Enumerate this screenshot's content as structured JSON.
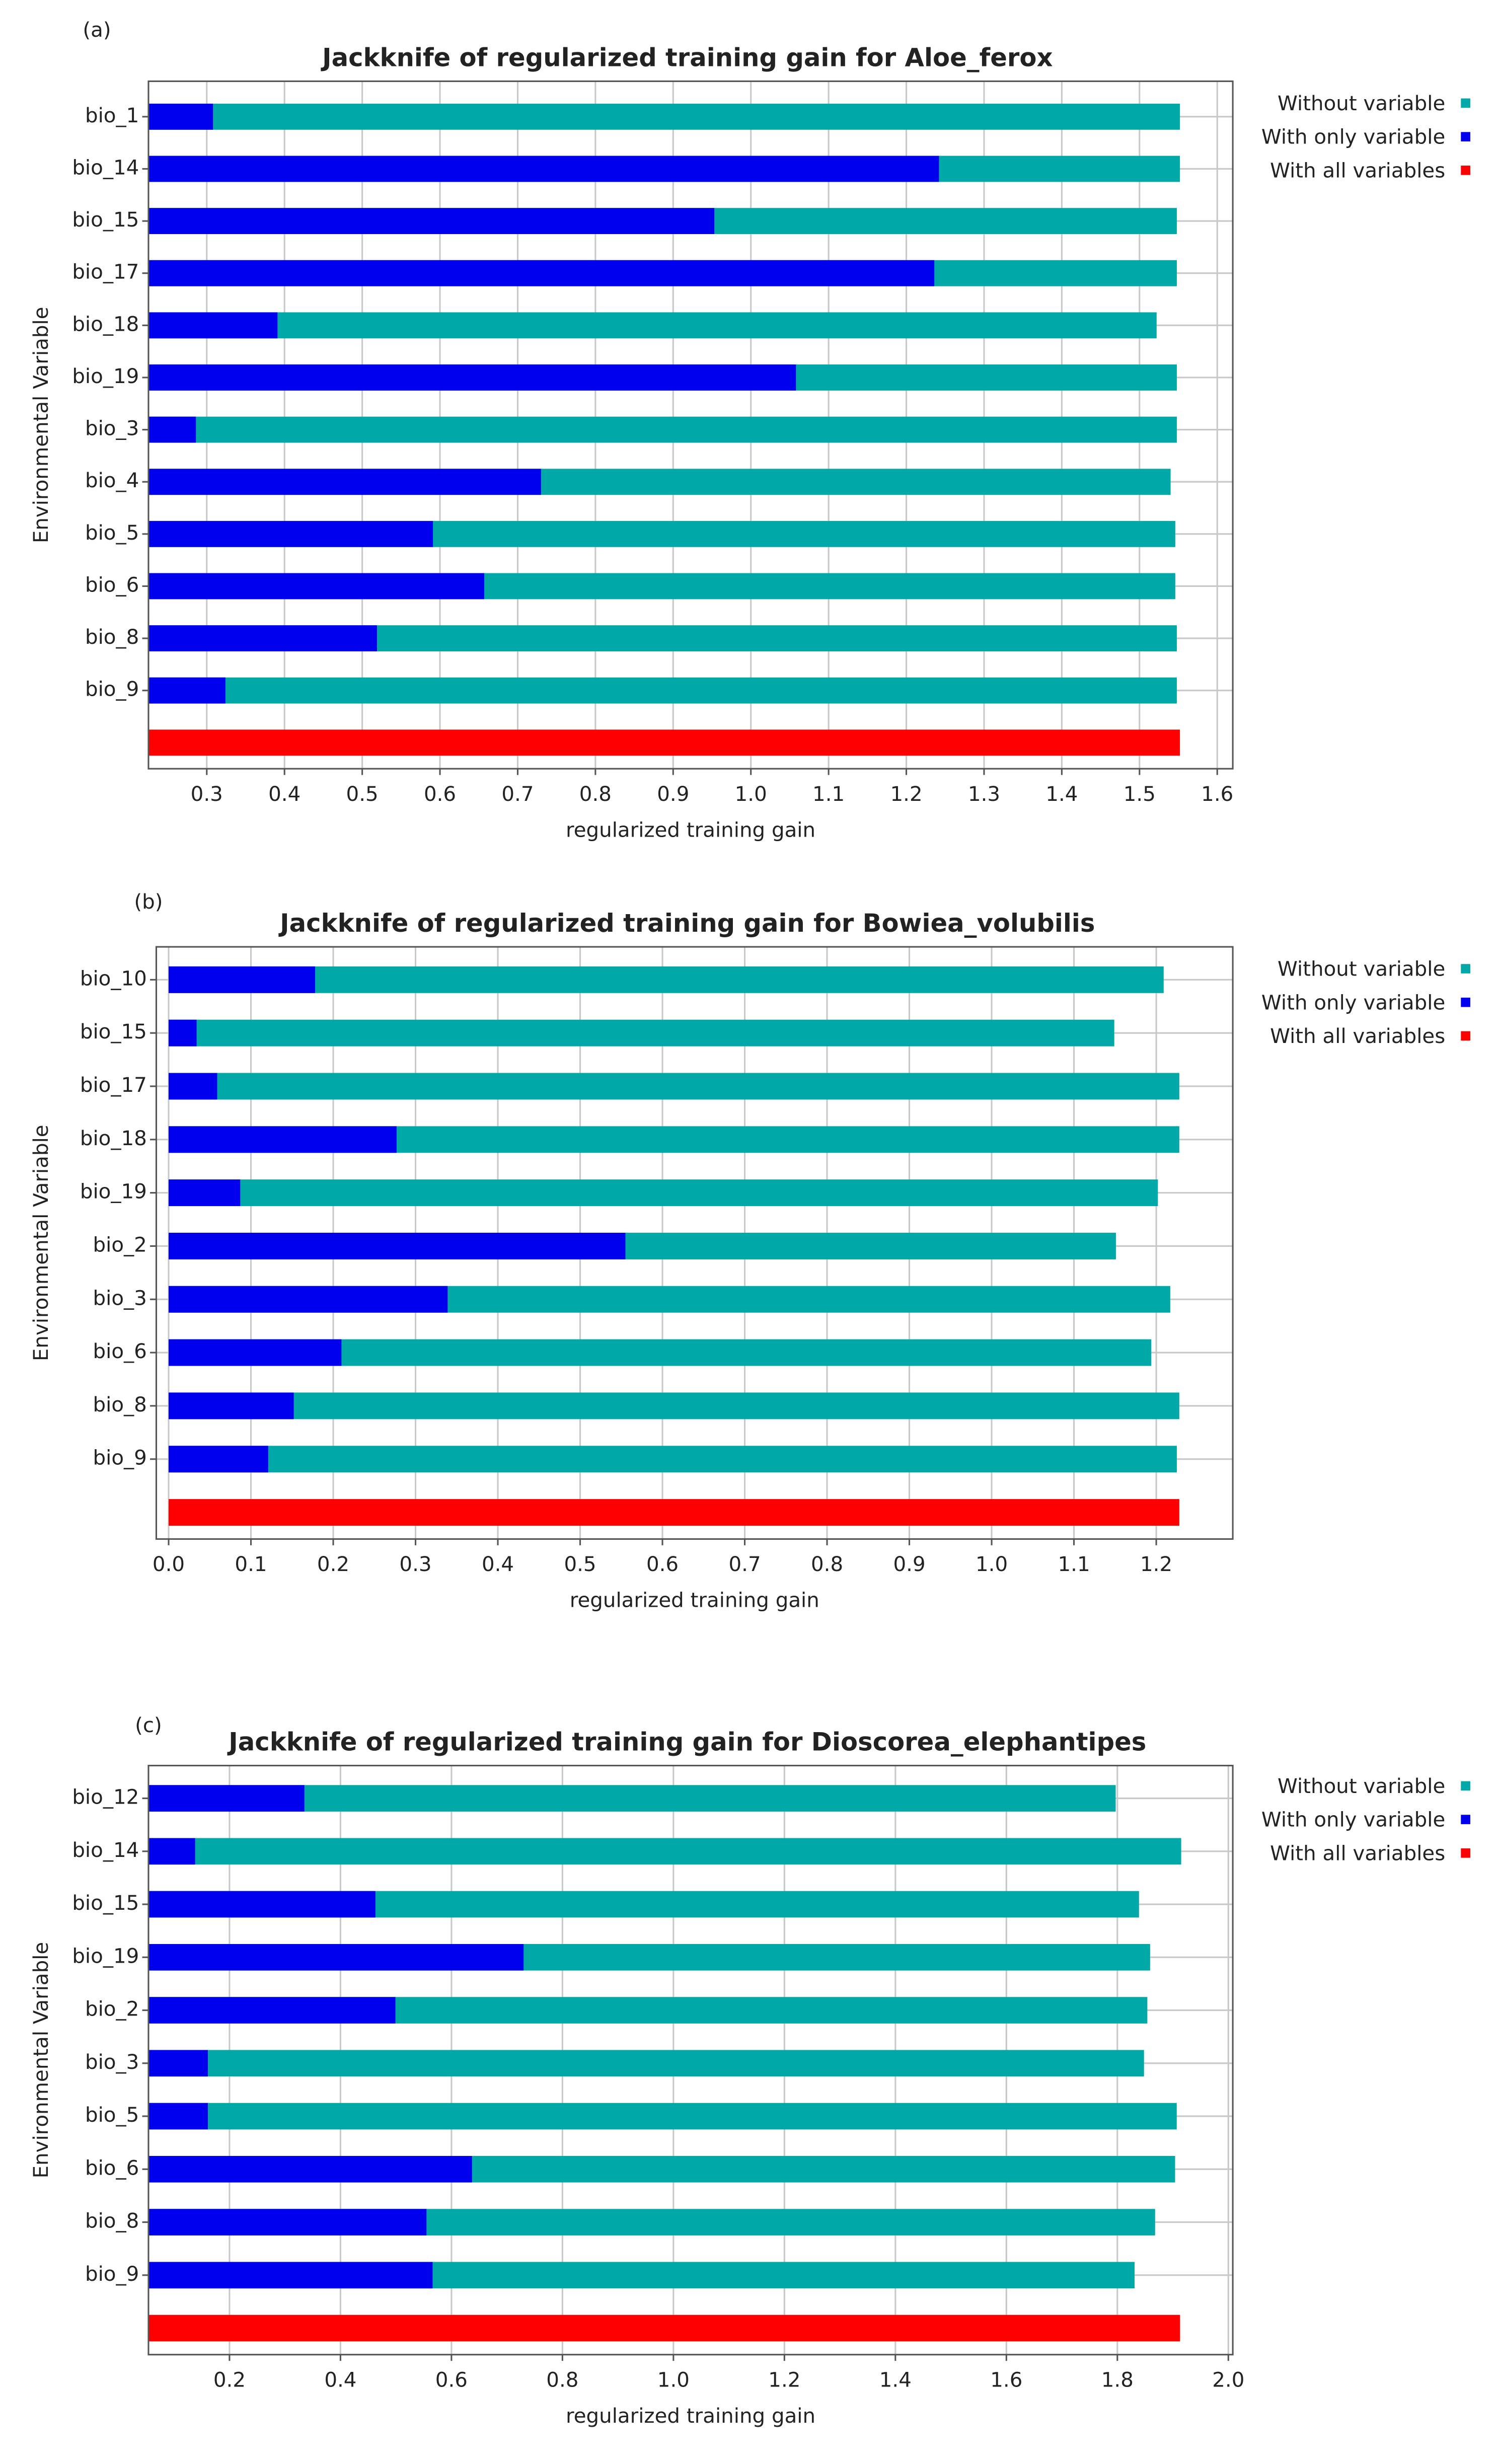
{
  "chart_data": [
    {
      "type": "bar",
      "label": "(a)",
      "title": "Jackknife of regularized training gain for Aloe_ferox",
      "xlabel": "regularized training gain",
      "ylabel": "Environmental Variable",
      "categories": [
        "bio_1",
        "bio_14",
        "bio_15",
        "bio_17",
        "bio_18",
        "bio_19",
        "bio_3",
        "bio_4",
        "bio_5",
        "bio_6",
        "bio_8",
        "bio_9",
        null
      ],
      "series": [
        {
          "name": "Without variable",
          "color": "#00a8a8",
          "values": [
            1.552,
            1.552,
            1.548,
            1.548,
            1.522,
            1.548,
            1.548,
            1.54,
            1.546,
            1.546,
            1.548,
            1.548,
            null
          ]
        },
        {
          "name": "With only variable",
          "color": "#0000ee",
          "values": [
            0.308,
            1.242,
            0.953,
            1.236,
            0.391,
            1.058,
            0.286,
            0.73,
            0.591,
            0.657,
            0.519,
            0.324,
            null
          ]
        },
        {
          "name": "With all variables",
          "color": "#ff0000",
          "values": [
            null,
            null,
            null,
            null,
            null,
            null,
            null,
            null,
            null,
            null,
            null,
            null,
            1.552
          ]
        }
      ],
      "xlim": [
        0.225,
        1.62
      ],
      "xticks": [
        0.3,
        0.4,
        0.5,
        0.6,
        0.7,
        0.8,
        0.9,
        {
          "value": 1,
          "label": "1.0"
        },
        1.1,
        1.2,
        1.3,
        1.4,
        1.5,
        1.6
      ],
      "grid": true,
      "legend": "right"
    },
    {
      "type": "bar",
      "label": "(b)",
      "title": "Jackknife of regularized training gain for Bowiea_volubilis",
      "xlabel": "regularized training gain",
      "ylabel": "Environmental Variable",
      "categories": [
        "bio_10",
        "bio_15",
        "bio_17",
        "bio_18",
        "bio_19",
        "bio_2",
        "bio_3",
        "bio_6",
        "bio_8",
        "bio_9",
        null
      ],
      "series": [
        {
          "name": "Without variable",
          "color": "#00a8a8",
          "values": [
            1.209,
            1.149,
            1.228,
            1.228,
            1.202,
            1.151,
            1.217,
            1.194,
            1.228,
            1.225,
            null
          ]
        },
        {
          "name": "With only variable",
          "color": "#0000ee",
          "values": [
            0.178,
            0.034,
            0.059,
            0.277,
            0.087,
            0.555,
            0.339,
            0.21,
            0.152,
            0.121,
            null
          ]
        },
        {
          "name": "With all variables",
          "color": "#ff0000",
          "values": [
            null,
            null,
            null,
            null,
            null,
            null,
            null,
            null,
            null,
            null,
            1.228
          ]
        }
      ],
      "xlim": [
        -0.015,
        1.293
      ],
      "xticks": [
        {
          "value": 0,
          "label": "0.0"
        },
        0.1,
        0.2,
        0.3,
        0.4,
        0.5,
        0.6,
        0.7,
        0.8,
        0.9,
        {
          "value": 1,
          "label": "1.0"
        },
        1.1,
        1.2
      ],
      "grid": true,
      "legend": "right"
    },
    {
      "type": "bar",
      "label": "(c)",
      "title": "Jackknife of regularized training gain for Dioscorea_elephantipes",
      "xlabel": "regularized training gain",
      "ylabel": "Environmental Variable",
      "categories": [
        "bio_12",
        "bio_14",
        "bio_15",
        "bio_19",
        "bio_2",
        "bio_3",
        "bio_5",
        "bio_6",
        "bio_8",
        "bio_9",
        null
      ],
      "series": [
        {
          "name": "Without variable",
          "color": "#00a8a8",
          "values": [
            1.797,
            1.915,
            1.839,
            1.859,
            1.854,
            1.848,
            1.907,
            1.904,
            1.868,
            1.831,
            null
          ]
        },
        {
          "name": "With only variable",
          "color": "#0000ee",
          "values": [
            0.335,
            0.138,
            0.463,
            0.73,
            0.499,
            0.161,
            0.161,
            0.637,
            0.555,
            0.566,
            null
          ]
        },
        {
          "name": "With all variables",
          "color": "#ff0000",
          "values": [
            null,
            null,
            null,
            null,
            null,
            null,
            null,
            null,
            null,
            null,
            1.913
          ]
        }
      ],
      "xlim": [
        0.054,
        2.008
      ],
      "xticks": [
        0.2,
        0.4,
        0.6,
        0.8,
        {
          "value": 1,
          "label": "1.0"
        },
        1.2,
        1.4,
        1.6,
        1.8,
        {
          "value": 2,
          "label": "2.0"
        }
      ],
      "grid": true,
      "legend": "right"
    }
  ]
}
